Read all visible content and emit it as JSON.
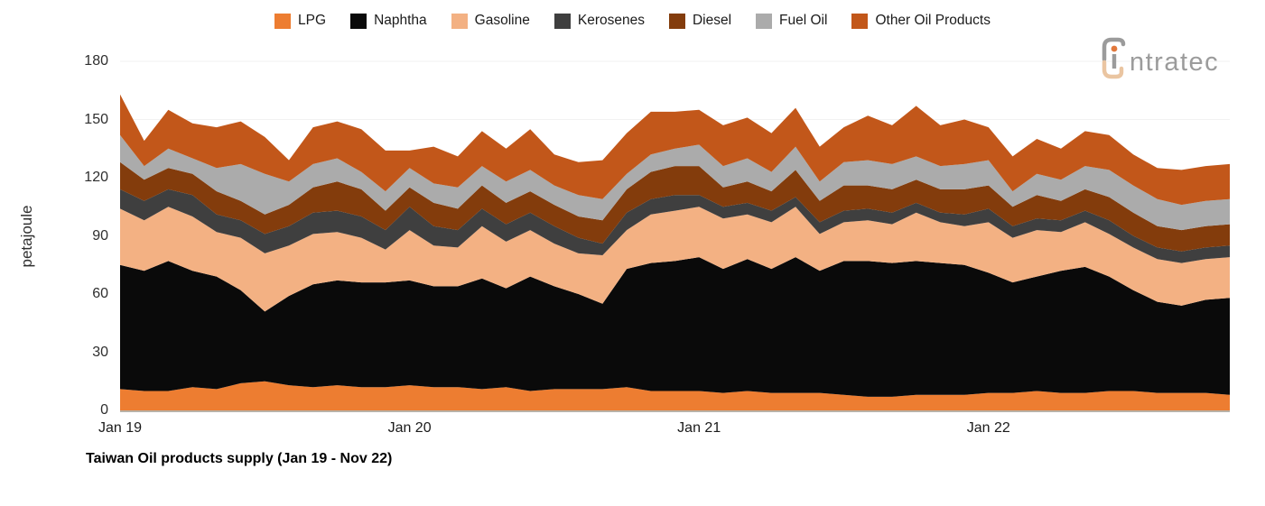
{
  "logo": {
    "brand_text": "ntratec",
    "text_color": "#9b9b9b",
    "hook_top_color": "#9b9b9b",
    "hook_bottom_color": "#eac5a1",
    "dot_color": "#e1783c"
  },
  "chart_data": {
    "type": "area",
    "stacked": true,
    "title": "Taiwan Oil products supply (Jan 19 - Nov 22)",
    "ylabel": "petajoule",
    "ylim": [
      0,
      180
    ],
    "y_ticks": [
      0,
      30,
      60,
      90,
      120,
      150,
      180
    ],
    "grid": "horizontal-faint",
    "legend_position": "top-center",
    "months": [
      "Jan 19",
      "Feb 19",
      "Mar 19",
      "Apr 19",
      "May 19",
      "Jun 19",
      "Jul 19",
      "Aug 19",
      "Sep 19",
      "Oct 19",
      "Nov 19",
      "Dec 19",
      "Jan 20",
      "Feb 20",
      "Mar 20",
      "Apr 20",
      "May 20",
      "Jun 20",
      "Jul 20",
      "Aug 20",
      "Sep 20",
      "Oct 20",
      "Nov 20",
      "Dec 20",
      "Jan 21",
      "Feb 21",
      "Mar 21",
      "Apr 21",
      "May 21",
      "Jun 21",
      "Jul 21",
      "Aug 21",
      "Sep 21",
      "Oct 21",
      "Nov 21",
      "Dec 21",
      "Jan 22",
      "Feb 22",
      "Mar 22",
      "Apr 22",
      "May 22",
      "Jun 22",
      "Jul 22",
      "Aug 22",
      "Sep 22",
      "Oct 22",
      "Nov 22"
    ],
    "x_ticks": [
      {
        "index": 0,
        "label": "Jan 19"
      },
      {
        "index": 12,
        "label": "Jan 20"
      },
      {
        "index": 24,
        "label": "Jan 21"
      },
      {
        "index": 36,
        "label": "Jan 22"
      }
    ],
    "series": [
      {
        "name": "LPG",
        "color": "#ED7D31",
        "values": [
          11,
          10,
          10,
          12,
          11,
          14,
          15,
          13,
          12,
          13,
          12,
          12,
          13,
          12,
          12,
          11,
          12,
          10,
          11,
          11,
          11,
          12,
          10,
          10,
          10,
          9,
          10,
          9,
          9,
          9,
          8,
          7,
          7,
          8,
          8,
          8,
          9,
          9,
          10,
          9,
          9,
          10,
          10,
          9,
          9,
          9,
          8
        ]
      },
      {
        "name": "Naphtha",
        "color": "#0a0a0a",
        "values": [
          64,
          62,
          67,
          60,
          58,
          48,
          36,
          46,
          53,
          54,
          54,
          54,
          54,
          52,
          52,
          57,
          51,
          59,
          53,
          49,
          44,
          61,
          66,
          67,
          69,
          64,
          68,
          64,
          70,
          63,
          69,
          70,
          69,
          69,
          68,
          67,
          62,
          57,
          59,
          63,
          65,
          59,
          52,
          47,
          45,
          48,
          50
        ]
      },
      {
        "name": "Gasoline",
        "color": "#F3B183",
        "values": [
          29,
          26,
          28,
          28,
          23,
          27,
          30,
          26,
          26,
          25,
          23,
          17,
          26,
          21,
          20,
          27,
          24,
          24,
          22,
          21,
          25,
          20,
          25,
          26,
          26,
          26,
          23,
          24,
          26,
          19,
          20,
          21,
          20,
          25,
          21,
          20,
          26,
          23,
          24,
          20,
          23,
          22,
          22,
          22,
          22,
          21,
          21
        ]
      },
      {
        "name": "Kerosenes",
        "color": "#3F3F3F",
        "values": [
          10,
          10,
          9,
          11,
          9,
          9,
          10,
          10,
          11,
          11,
          11,
          10,
          12,
          10,
          9,
          9,
          9,
          9,
          9,
          8,
          6,
          9,
          8,
          8,
          6,
          6,
          6,
          6,
          5,
          6,
          6,
          6,
          6,
          5,
          5,
          6,
          7,
          6,
          6,
          6,
          6,
          7,
          6,
          6,
          6,
          6,
          6
        ]
      },
      {
        "name": "Diesel",
        "color": "#833C0C",
        "values": [
          14,
          11,
          11,
          11,
          12,
          10,
          10,
          11,
          13,
          15,
          14,
          10,
          10,
          12,
          11,
          12,
          11,
          11,
          11,
          11,
          12,
          12,
          14,
          15,
          15,
          10,
          11,
          10,
          14,
          11,
          13,
          12,
          12,
          12,
          12,
          13,
          12,
          10,
          12,
          10,
          11,
          12,
          12,
          11,
          11,
          11,
          11
        ]
      },
      {
        "name": "Fuel Oil",
        "color": "#ABABAB",
        "values": [
          14,
          7,
          10,
          8,
          12,
          19,
          21,
          12,
          12,
          12,
          9,
          10,
          10,
          10,
          11,
          10,
          11,
          11,
          10,
          11,
          11,
          8,
          9,
          9,
          11,
          11,
          12,
          10,
          12,
          10,
          12,
          13,
          13,
          12,
          12,
          13,
          13,
          8,
          11,
          11,
          12,
          14,
          14,
          14,
          13,
          13,
          13
        ]
      },
      {
        "name": "Other Oil Products",
        "color": "#C2571A",
        "values": [
          21,
          13,
          20,
          18,
          21,
          22,
          19,
          11,
          19,
          19,
          22,
          21,
          9,
          19,
          16,
          18,
          17,
          21,
          16,
          17,
          20,
          21,
          22,
          19,
          18,
          21,
          21,
          20,
          20,
          18,
          18,
          23,
          20,
          26,
          21,
          23,
          17,
          18,
          18,
          16,
          18,
          18,
          16,
          16,
          18,
          18,
          18
        ]
      }
    ],
    "axis_colors": {
      "gridline": "#f2f2f2",
      "baseline": "#b9b2a7"
    }
  }
}
